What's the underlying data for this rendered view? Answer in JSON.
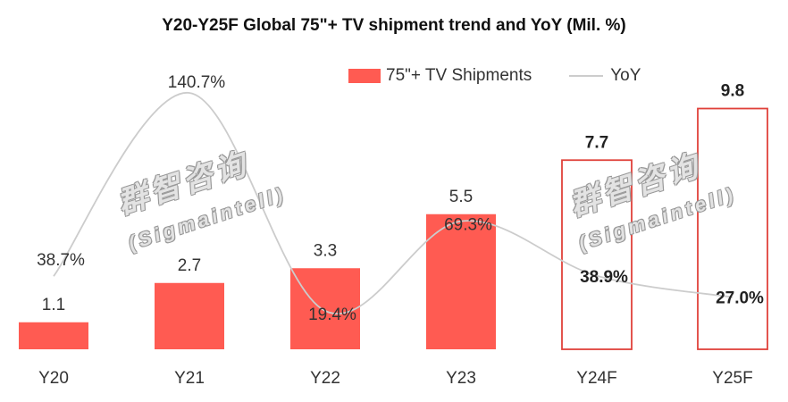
{
  "chart_data": {
    "type": "bar",
    "title": "Y20-Y25F Global 75\"+ TV shipment trend and YoY (Mil. %)",
    "categories": [
      "Y20",
      "Y21",
      "Y22",
      "Y23",
      "Y24F",
      "Y25F"
    ],
    "series": [
      {
        "name": "75\"+ TV Shipments",
        "type": "bar",
        "values": [
          1.1,
          2.7,
          3.3,
          5.5,
          7.7,
          9.8
        ],
        "labels": [
          "1.1",
          "2.7",
          "3.3",
          "5.5",
          "7.7",
          "9.8"
        ],
        "forecast": [
          false,
          false,
          false,
          false,
          true,
          true
        ]
      },
      {
        "name": "YoY",
        "type": "line",
        "values": [
          38.7,
          140.7,
          19.4,
          69.3,
          38.9,
          27.0
        ],
        "labels": [
          "38.7%",
          "140.7%",
          "19.4%",
          "69.3%",
          "38.9%",
          "27.0%"
        ],
        "smooth": true
      }
    ],
    "legend_position": "top-right",
    "grid": false,
    "colors": {
      "bar": "#ff5b52",
      "forecast_outline": "#e0413a",
      "line": "#cccccc",
      "text": "#333333"
    }
  },
  "watermark": {
    "chinese": "群智咨询",
    "latin": "(Sigmaintell)"
  }
}
